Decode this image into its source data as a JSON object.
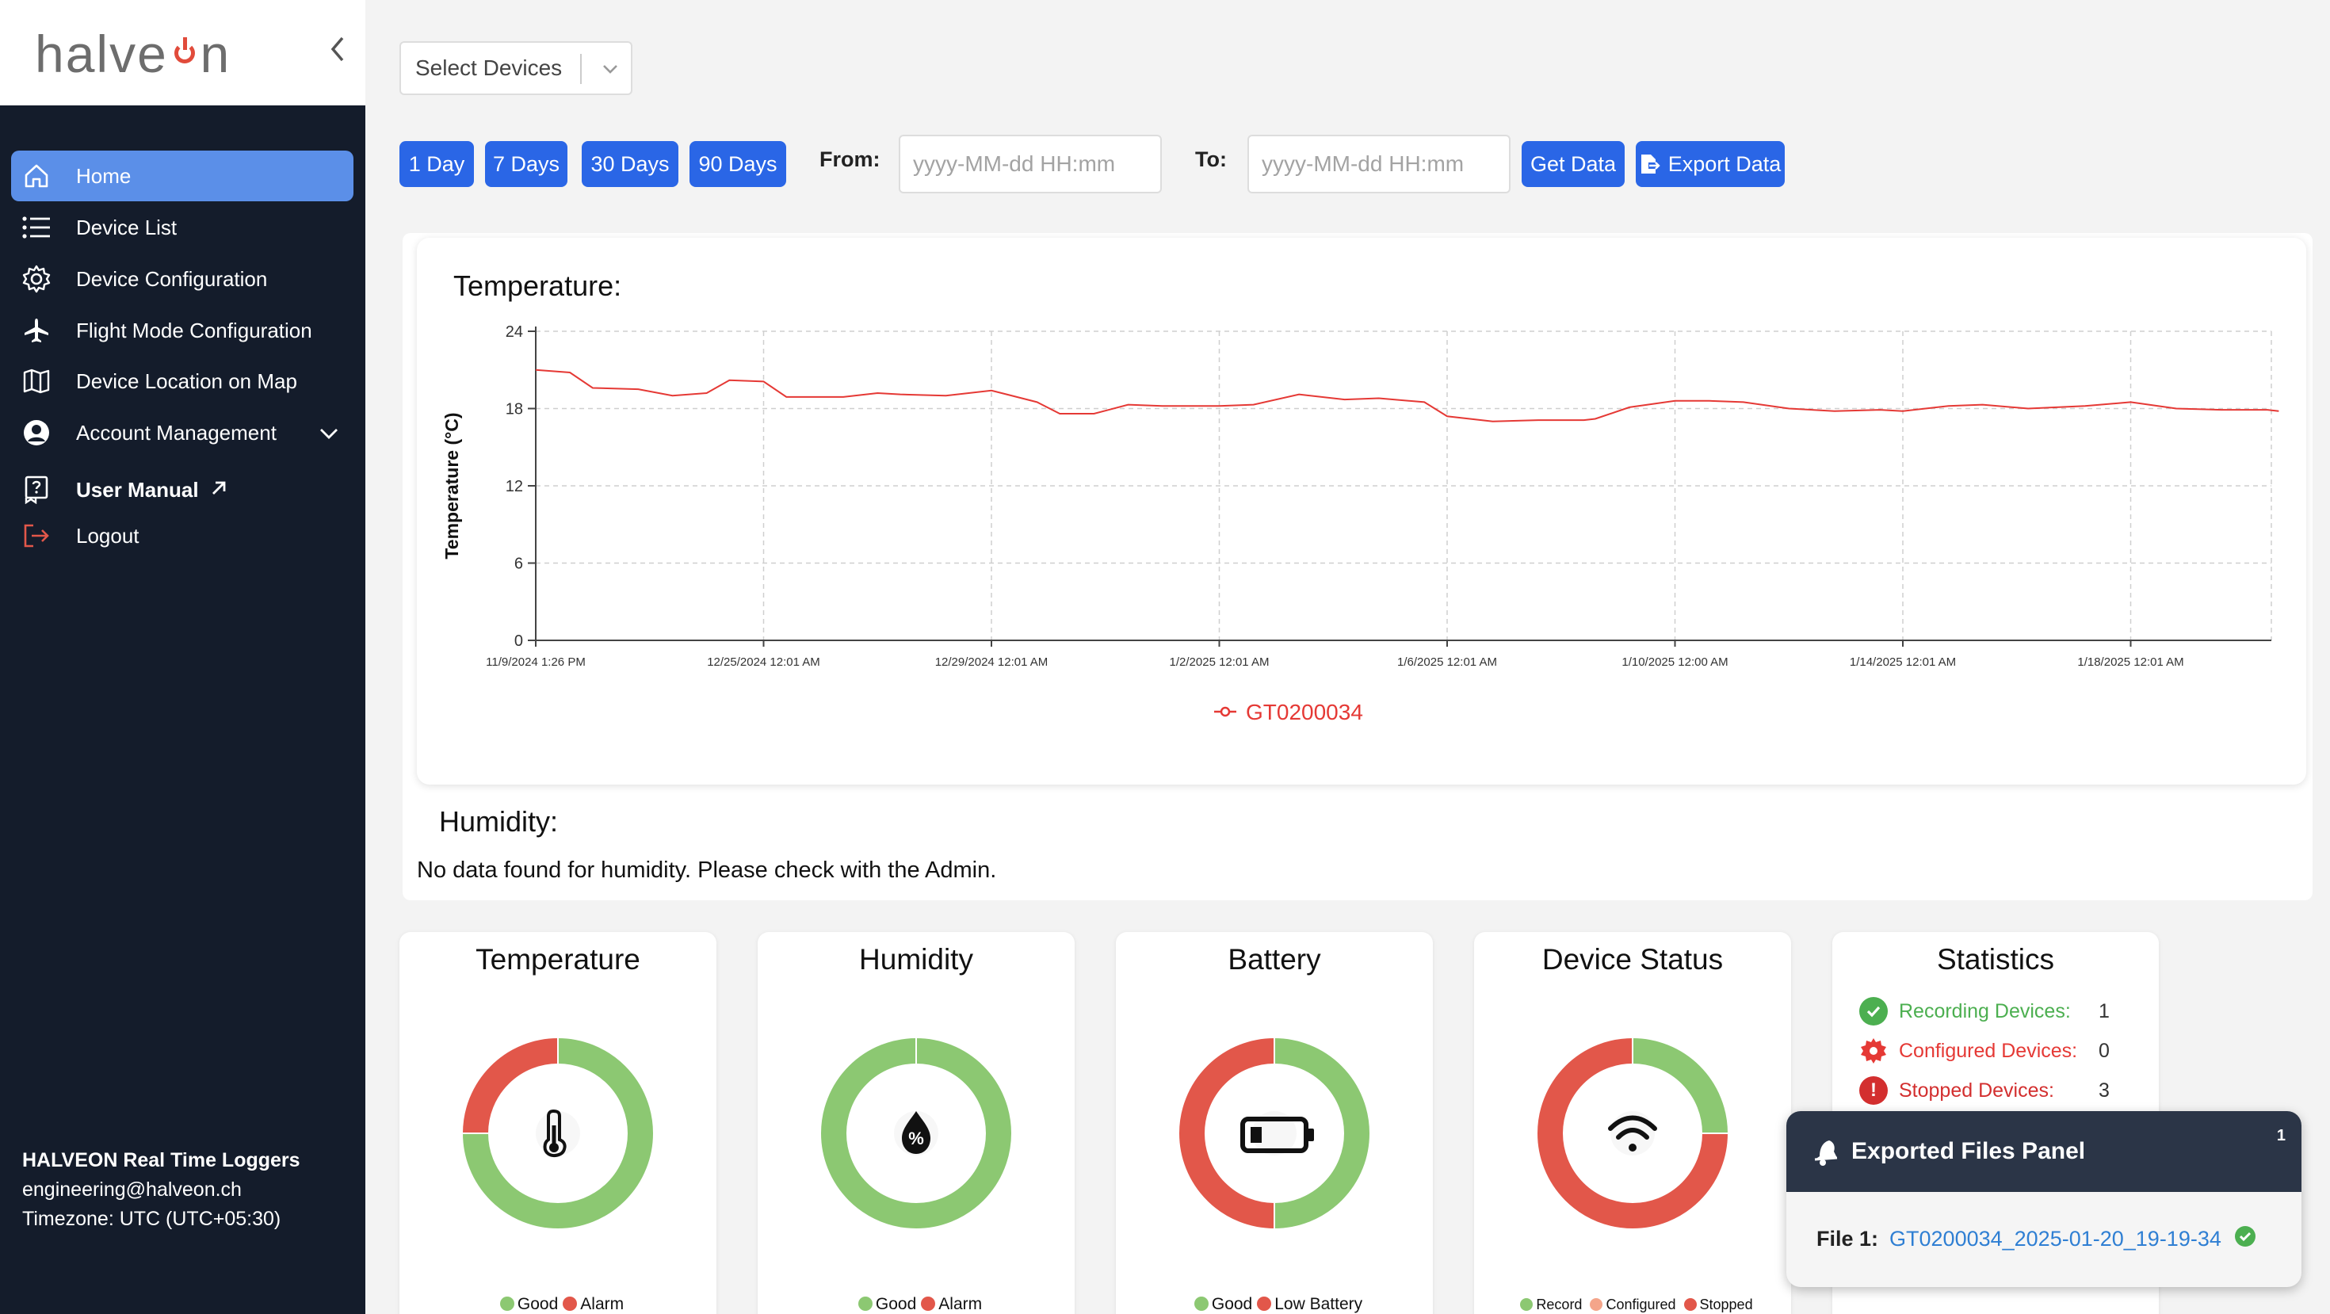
{
  "brand": {
    "logo_text_a": "halve",
    "logo_text_b": "n"
  },
  "sidebar": {
    "items": [
      {
        "label": "Home",
        "icon": "home-icon"
      },
      {
        "label": "Device List",
        "icon": "list-icon"
      },
      {
        "label": "Device Configuration",
        "icon": "gear-icon"
      },
      {
        "label": "Flight Mode Configuration",
        "icon": "airplane-icon"
      },
      {
        "label": "Device Location on Map",
        "icon": "map-icon"
      },
      {
        "label": "Account Management",
        "icon": "user-circle-icon"
      },
      {
        "label": "User Manual",
        "icon": "help-book-icon"
      },
      {
        "label": "Logout",
        "icon": "logout-icon"
      }
    ],
    "footer": {
      "company": "HALVEON Real Time Loggers",
      "email": "engineering@halveon.ch",
      "timezone": "Timezone: UTC (UTC+05:30)"
    }
  },
  "toolbar": {
    "select_devices": "Select Devices",
    "ranges": [
      "1 Day",
      "7 Days",
      "30 Days",
      "90 Days"
    ],
    "from_label": "From:",
    "to_label": "To:",
    "date_placeholder": "yyyy-MM-dd HH:mm",
    "get_data": "Get Data",
    "export_data": "Export Data"
  },
  "temperature_section": {
    "title": "Temperature:",
    "chart_data": {
      "type": "line",
      "ylabel": "Temperature (°C)",
      "ylim": [
        0,
        24
      ],
      "yticks": [
        0,
        6,
        12,
        18,
        24
      ],
      "x_tick_labels": [
        "11/9/2024 1:26 PM",
        "12/25/2024 12:01 AM",
        "12/29/2024 12:01 AM",
        "1/2/2025 12:01 AM",
        "1/6/2025 12:01 AM",
        "1/10/2025 12:00 AM",
        "1/14/2025 12:01 AM",
        "1/18/2025 12:01 AM"
      ],
      "grid": true,
      "legend_position": "bottom",
      "color": "#e53935",
      "series": [
        {
          "name": "GT0200034",
          "x_index": [
            0,
            0.15,
            0.25,
            0.45,
            0.6,
            0.75,
            0.85,
            1.0,
            1.1,
            1.35,
            1.5,
            1.6,
            1.8,
            2.0,
            2.2,
            2.3,
            2.45,
            2.6,
            2.75,
            3.0,
            3.15,
            3.35,
            3.55,
            3.7,
            3.9,
            4.0,
            4.2,
            4.4,
            4.6,
            4.65,
            4.8,
            5.0,
            5.15,
            5.3,
            5.5,
            5.7,
            5.9,
            6.0,
            6.2,
            6.35,
            6.55,
            6.8,
            7.0,
            7.2,
            7.4,
            7.6,
            7.65
          ],
          "values": [
            21.0,
            20.8,
            19.6,
            19.5,
            19.0,
            19.2,
            20.2,
            20.1,
            18.9,
            18.9,
            19.2,
            19.1,
            19.0,
            19.4,
            18.5,
            17.6,
            17.6,
            18.3,
            18.2,
            18.2,
            18.3,
            19.1,
            18.7,
            18.8,
            18.5,
            17.4,
            17.0,
            17.1,
            17.1,
            17.2,
            18.1,
            18.6,
            18.6,
            18.5,
            18.0,
            17.8,
            17.9,
            17.8,
            18.2,
            18.3,
            18.0,
            18.2,
            18.5,
            18.0,
            17.9,
            17.9,
            17.8
          ]
        }
      ]
    }
  },
  "humidity_section": {
    "title": "Humidity:",
    "message": "No data found for humidity. Please check with the Admin."
  },
  "summary_cards": {
    "temperature": {
      "title": "Temperature",
      "icon": "thermometer-icon",
      "good_fraction": 0.75,
      "alarm_fraction": 0.25,
      "legend": [
        "Good",
        "Alarm"
      ]
    },
    "humidity": {
      "title": "Humidity",
      "icon": "humidity-drop-icon",
      "good_fraction": 1.0,
      "alarm_fraction": 0.0,
      "legend": [
        "Good",
        "Alarm"
      ]
    },
    "battery": {
      "title": "Battery",
      "icon": "battery-icon",
      "good_fraction": 0.5,
      "low_fraction": 0.5,
      "legend": [
        "Good",
        "Low Battery"
      ]
    },
    "device_status": {
      "title": "Device Status",
      "icon": "wifi-icon",
      "record_fraction": 0.25,
      "configured_fraction": 0.0,
      "stopped_fraction": 0.75,
      "legend": [
        "Record",
        "Configured",
        "Stopped"
      ]
    },
    "statistics": {
      "title": "Statistics",
      "rows": [
        {
          "label": "Recording Devices:",
          "value": "1",
          "color": "#4caf50",
          "icon": "check-circle-icon"
        },
        {
          "label": "Configured Devices:",
          "value": "0",
          "color": "#e53935",
          "icon": "cog-icon"
        },
        {
          "label": "Stopped Devices:",
          "value": "3",
          "color": "#d32f2f",
          "icon": "alert-circle-icon"
        }
      ]
    }
  },
  "colors": {
    "good": "#8cc872",
    "alarm": "#e2574a",
    "configured": "#f4a58a",
    "accent": "#2a66e6",
    "sidebar": "#141c2b"
  },
  "export_panel": {
    "title": "Exported Files Panel",
    "count": "1",
    "file_label": "File 1:",
    "file_name": "GT0200034_2025-01-20_19-19-34"
  }
}
